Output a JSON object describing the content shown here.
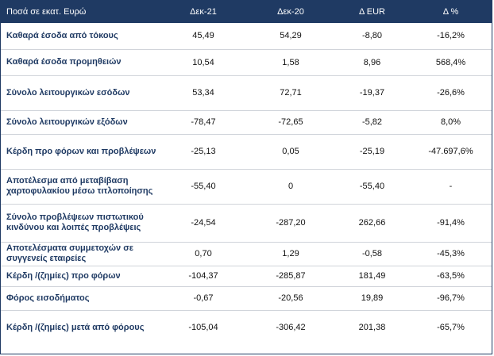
{
  "header": {
    "col_label": "Ποσά σε εκατ. Ευρώ",
    "col_dec21": "Δεκ-21",
    "col_dec20": "Δεκ-20",
    "col_delta_eur": "Δ EUR",
    "col_delta_pct": "Δ %"
  },
  "rows": [
    {
      "label": "Καθαρά έσοδα από τόκους",
      "dec21": "45,49",
      "dec20": "54,29",
      "delta_eur": "-8,80",
      "delta_pct": "-16,2%"
    },
    {
      "label": "Καθαρά έσοδα προμηθειών",
      "dec21": "10,54",
      "dec20": "1,58",
      "delta_eur": "8,96",
      "delta_pct": "568,4%"
    },
    {
      "label": "Σύνολο λειτουργικών εσόδων",
      "dec21": "53,34",
      "dec20": "72,71",
      "delta_eur": "-19,37",
      "delta_pct": "-26,6%"
    },
    {
      "label": "Σύνολο λειτουργικών εξόδων",
      "dec21": "-78,47",
      "dec20": "-72,65",
      "delta_eur": "-5,82",
      "delta_pct": "8,0%"
    },
    {
      "label": "Κέρδη προ φόρων και προβλέψεων",
      "dec21": "-25,13",
      "dec20": "0,05",
      "delta_eur": "-25,19",
      "delta_pct": "-47.697,6%"
    },
    {
      "label": "Αποτέλεσμα από μεταβίβαση χαρτοφυλακίου μέσω τιτλοποίησης",
      "dec21": "-55,40",
      "dec20": "0",
      "delta_eur": "-55,40",
      "delta_pct": "-"
    },
    {
      "label": "Σύνολο προβλέψεων πιστωτικού κινδύνου και λοιπές προβλέψεις",
      "dec21": "-24,54",
      "dec20": "-287,20",
      "delta_eur": "262,66",
      "delta_pct": "-91,4%"
    },
    {
      "label": "Αποτελέσματα συμμετοχών σε συγγενείς εταιρείες",
      "dec21": "0,70",
      "dec20": "1,29",
      "delta_eur": "-0,58",
      "delta_pct": "-45,3%"
    },
    {
      "label": "Κέρδη /(ζημίες) προ φόρων",
      "dec21": "-104,37",
      "dec20": "-285,87",
      "delta_eur": "181,49",
      "delta_pct": "-63,5%"
    },
    {
      "label": "Φόρος εισοδήματος",
      "dec21": "-0,67",
      "dec20": "-20,56",
      "delta_eur": "19,89",
      "delta_pct": "-96,7%"
    },
    {
      "label": "Κέρδη /(ζημίες) μετά από φόρους",
      "dec21": "-105,04",
      "dec20": "-306,42",
      "delta_eur": "201,38",
      "delta_pct": "-65,7%"
    }
  ],
  "colors": {
    "header_bg": "#1f3a63",
    "header_text": "#ffffff",
    "label_text": "#1f3a63"
  }
}
